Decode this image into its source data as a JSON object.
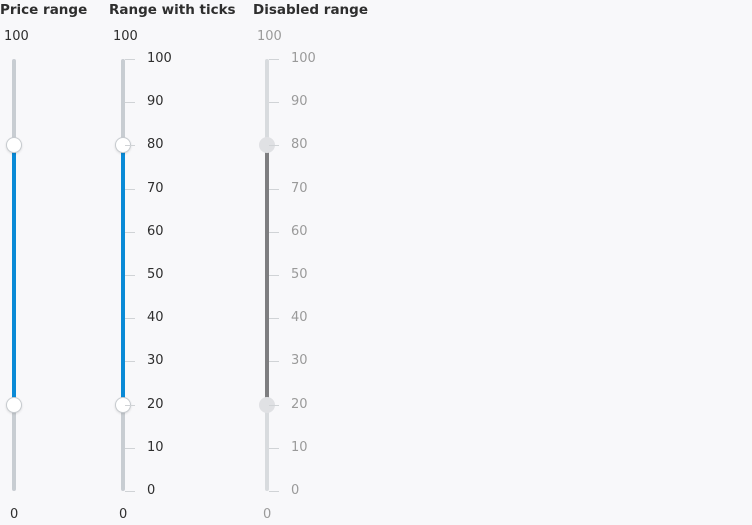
{
  "sliders": {
    "price": {
      "title": "Price range",
      "max_label": "100",
      "min_label": "0",
      "value_low": 20,
      "value_high": 80,
      "fill_color": "#0a8ad6"
    },
    "ticks": {
      "title": "Range with ticks",
      "max_label": "100",
      "min_label": "0",
      "value_low": 20,
      "value_high": 80,
      "tick_labels": [
        "100",
        "90",
        "80",
        "70",
        "60",
        "50",
        "40",
        "30",
        "20",
        "10",
        "0"
      ],
      "fill_color": "#0a8ad6"
    },
    "disabled": {
      "title": "Disabled range",
      "max_label": "100",
      "min_label": "0",
      "value_low": 20,
      "value_high": 80,
      "tick_labels": [
        "100",
        "90",
        "80",
        "70",
        "60",
        "50",
        "40",
        "30",
        "20",
        "10",
        "0"
      ],
      "fill_color": "#7e7e80",
      "disabled": true
    }
  }
}
